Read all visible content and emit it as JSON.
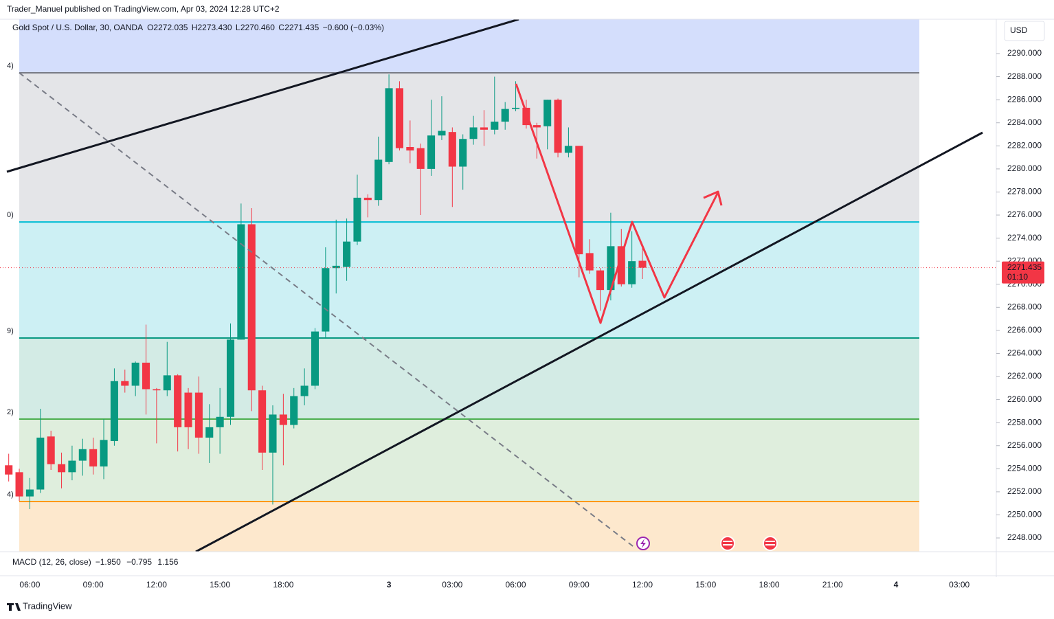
{
  "header": {
    "publisher": "Trader_Manuel published on TradingView.com, Apr 03, 2024 12:28 UTC+2"
  },
  "legend": {
    "symbol": "Gold Spot / U.S. Dollar, 30, OANDA",
    "ohlc": [
      [
        "O",
        "2272.035"
      ],
      [
        "H",
        "2273.430"
      ],
      [
        "L",
        "2270.460"
      ],
      [
        "C",
        "2271.435"
      ]
    ],
    "change": "−0.600 (−0.03%)"
  },
  "macd": {
    "title": "MACD (12, 26, close)",
    "values": [
      "−1.950",
      "−0.795",
      "1.156"
    ],
    "colors": [
      "#f7a1b0",
      "#2962ff",
      "#ff6d00"
    ]
  },
  "currency": "USD",
  "footer": {
    "brand": "TradingView"
  },
  "chart_data": {
    "type": "candlestick",
    "categories": [
      null,
      null,
      "06:00",
      null,
      null,
      null,
      null,
      null,
      "09:00",
      null,
      null,
      null,
      null,
      null,
      "12:00",
      null,
      null,
      null,
      null,
      null,
      "15:00",
      null,
      null,
      null,
      null,
      null,
      "18:00",
      null,
      null,
      null,
      null,
      null,
      null,
      null,
      null,
      null,
      "3",
      null,
      null,
      null,
      null,
      null,
      "03:00",
      null,
      null,
      null,
      null,
      null,
      "06:00",
      null,
      null,
      null,
      null,
      null,
      "09:00",
      null,
      null,
      null,
      null,
      null,
      "12:00",
      null,
      null,
      null,
      null,
      null,
      "15:00",
      null,
      null,
      null,
      null,
      null,
      "18:00",
      null,
      null,
      null,
      null,
      null,
      "21:00",
      null,
      null,
      null,
      null,
      null,
      "4",
      null,
      null,
      null,
      null,
      null,
      "03:00",
      null,
      null,
      null
    ],
    "open": [
      2254.3,
      2253.7,
      2251.6,
      2252.2,
      2256.8,
      2254.4,
      2253.7,
      2254.7,
      2255.7,
      2254.2,
      2256.4,
      2261.6,
      2261.2,
      2263.2,
      2260.9,
      2260.8,
      2262.1,
      2260.6,
      2260.6,
      2256.7,
      2257.6,
      2258.5,
      2265.2,
      2275.2,
      2260.8,
      2255.4,
      2258.7,
      2257.8,
      2260.3,
      2261.2,
      2265.9,
      2271.4,
      2271.5,
      2273.7,
      2277.5,
      2277.3,
      2280.6,
      2287.0,
      2281.9,
      2281.8,
      2280.0,
      2282.9,
      2283.2,
      2280.2,
      2282.6,
      2283.6,
      2283.4,
      2284.1,
      2285.2,
      2285.3,
      2283.8,
      2283.7,
      2286.0,
      2281.4,
      2282.0,
      2272.7,
      2271.2,
      2269.5,
      2273.3,
      2270.0,
      2272.035,
      null,
      null,
      null,
      null,
      null,
      null,
      null,
      null,
      null,
      null,
      null,
      null,
      null,
      null,
      null,
      null,
      null,
      null,
      null,
      null,
      null,
      null,
      null,
      null,
      null,
      null,
      null,
      null,
      null,
      null,
      null,
      null,
      null
    ],
    "high": [
      2255.3,
      2254.0,
      2253.2,
      2259.2,
      2257.3,
      2255.4,
      2256.0,
      2256.6,
      2256.7,
      2258.3,
      2262.7,
      2262.6,
      2263.3,
      2266.5,
      2261.0,
      2265.0,
      2262.2,
      2261.0,
      2262.0,
      2259.6,
      2261.0,
      2266.6,
      2277.0,
      2276.6,
      2261.2,
      2259.5,
      2260.5,
      2261.0,
      2262.7,
      2266.2,
      2273.2,
      2275.6,
      2275.7,
      2279.5,
      2277.8,
      2282.8,
      2288.2,
      2287.6,
      2284.2,
      2282.2,
      2286.0,
      2286.3,
      2283.6,
      2283.0,
      2284.6,
      2285.1,
      2288.0,
      2285.8,
      2287.6,
      2286.0,
      2284.0,
      2286.0,
      2286.1,
      2283.6,
      2282.0,
      2273.9,
      2271.4,
      2276.2,
      2274.8,
      2274.6,
      2273.43,
      null,
      null,
      null,
      null,
      null,
      null,
      null,
      null,
      null,
      null,
      null,
      null,
      null,
      null,
      null,
      null,
      null,
      null,
      null,
      null,
      null,
      null,
      null,
      null,
      null,
      null,
      null,
      null,
      null,
      null,
      null,
      null,
      null
    ],
    "low": [
      2252.9,
      2251.2,
      2250.5,
      2251.9,
      2253.9,
      2252.3,
      2253.0,
      2253.4,
      2253.5,
      2253.1,
      2256.0,
      2260.6,
      2260.3,
      2258.7,
      2256.2,
      2260.3,
      2255.5,
      2255.7,
      2255.3,
      2254.5,
      2255.3,
      2257.8,
      2265.2,
      2259.0,
      2253.9,
      2250.9,
      2254.3,
      2257.5,
      2259.5,
      2260.9,
      2265.3,
      2269.2,
      2270.3,
      2273.4,
      2275.8,
      2276.8,
      2280.4,
      2281.6,
      2280.5,
      2276.0,
      2279.4,
      2282.5,
      2276.7,
      2278.2,
      2282.1,
      2282.0,
      2283.0,
      2283.4,
      2285.0,
      2283.5,
      2280.9,
      2281.7,
      2281.0,
      2281.0,
      2270.6,
      2270.9,
      2267.7,
      2268.6,
      2269.8,
      2269.7,
      2270.46,
      null,
      null,
      null,
      null,
      null,
      null,
      null,
      null,
      null,
      null,
      null,
      null,
      null,
      null,
      null,
      null,
      null,
      null,
      null,
      null,
      null,
      null,
      null,
      null,
      null,
      null,
      null,
      null,
      null,
      null,
      null,
      null,
      null
    ],
    "close": [
      2253.5,
      2251.6,
      2252.2,
      2256.7,
      2254.4,
      2253.7,
      2254.7,
      2255.7,
      2254.2,
      2256.5,
      2261.6,
      2261.2,
      2263.2,
      2260.9,
      2260.8,
      2262.1,
      2257.6,
      2257.6,
      2256.7,
      2257.6,
      2258.5,
      2265.2,
      2275.2,
      2260.8,
      2255.4,
      2258.7,
      2257.8,
      2260.3,
      2261.2,
      2265.9,
      2271.4,
      2271.6,
      2273.7,
      2277.5,
      2277.3,
      2280.8,
      2287.0,
      2281.8,
      2281.6,
      2280.0,
      2282.9,
      2283.3,
      2280.2,
      2282.6,
      2283.6,
      2283.4,
      2284.1,
      2285.2,
      2285.3,
      2283.8,
      2283.6,
      2286.0,
      2281.4,
      2282.0,
      2272.6,
      2271.2,
      2269.5,
      2273.3,
      2270.0,
      2272.0,
      2271.435,
      null,
      null,
      null,
      null,
      null,
      null,
      null,
      null,
      null,
      null,
      null,
      null,
      null,
      null,
      null,
      null,
      null,
      null,
      null,
      null,
      null,
      null,
      null,
      null,
      null,
      null,
      null,
      null,
      null,
      null,
      null,
      null,
      null
    ],
    "up_color": "#089981",
    "down_color": "#f23645",
    "ylim": [
      2246.81,
      2292.98
    ],
    "yticks": [
      {
        "value": 2248,
        "label": "2248.000"
      },
      {
        "value": 2250,
        "label": "2250.000"
      },
      {
        "value": 2252,
        "label": "2252.000"
      },
      {
        "value": 2254,
        "label": "2254.000"
      },
      {
        "value": 2256,
        "label": "2256.000"
      },
      {
        "value": 2258,
        "label": "2258.000"
      },
      {
        "value": 2260,
        "label": "2260.000"
      },
      {
        "value": 2262,
        "label": "2262.000"
      },
      {
        "value": 2264,
        "label": "2264.000"
      },
      {
        "value": 2266,
        "label": "2266.000"
      },
      {
        "value": 2268,
        "label": "2268.000"
      },
      {
        "value": 2270,
        "label": "2270.000"
      },
      {
        "value": 2272,
        "label": "2272.000"
      },
      {
        "value": 2274,
        "label": "2274.000"
      },
      {
        "value": 2276,
        "label": "2276.000"
      },
      {
        "value": 2278,
        "label": "2278.000"
      },
      {
        "value": 2280,
        "label": "2280.000"
      },
      {
        "value": 2282,
        "label": "2282.000"
      },
      {
        "value": 2284,
        "label": "2284.000"
      },
      {
        "value": 2286,
        "label": "2286.000"
      },
      {
        "value": 2288,
        "label": "2288.000"
      },
      {
        "value": 2290,
        "label": "2290.000"
      }
    ],
    "levels": [
      {
        "value": 2288.33,
        "label": "4)",
        "color": "#787b86"
      },
      {
        "value": 2275.4,
        "label": "0)",
        "color": "#00bcd4"
      },
      {
        "value": 2265.34,
        "label": "9)",
        "color": "#089981"
      },
      {
        "value": 2258.31,
        "label": "2)",
        "color": "#4caf50"
      },
      {
        "value": 2251.16,
        "label": "4)",
        "color": "#ff9800"
      }
    ],
    "zone_colors": [
      "#d4defc",
      "#e4e5e8",
      "#cdf0f4",
      "#d3ebe5",
      "#dfeedd",
      "#fde8cd"
    ],
    "last_price": 2271.435,
    "countdown": "01:10",
    "grid": false
  }
}
